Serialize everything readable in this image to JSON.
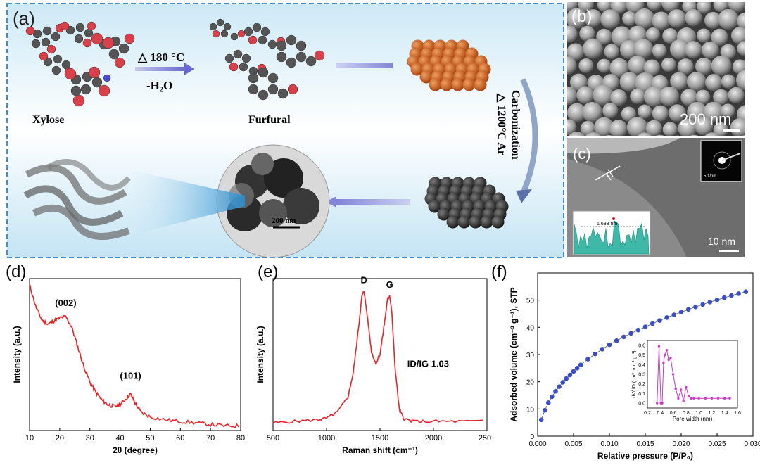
{
  "figure": {
    "panel_a": {
      "label": "(a)",
      "reaction_condition": "△ 180 °C",
      "dehydration": "-H₂O",
      "reactant_label": "Xylose",
      "product_label": "Furfural",
      "carbonization_label": "Carbonization",
      "carbonization_condition": "△ 1200°C Ar",
      "tem_scale": "200 nm"
    },
    "panel_b": {
      "label": "(b)",
      "scale": "200 nm"
    },
    "panel_c": {
      "label": "(c)",
      "scale": "10 nm",
      "inset_scale": "5 1/nm",
      "lattice_spacing": "1.633 nm"
    },
    "panel_d": {
      "label": "(d)"
    },
    "panel_e": {
      "label": "(e)"
    },
    "panel_f": {
      "label": "(f)"
    }
  },
  "colors": {
    "plot_red": "#e8232a",
    "blue_points": "#3b4fc4",
    "magenta": "#c83cc8",
    "sphere_orange": "#c8581e",
    "sphere_dark": "#2c2c2c",
    "frame_dash": "#3a8fd8"
  },
  "chart_data": [
    {
      "id": "d",
      "type": "line",
      "title": "",
      "xlabel": "2θ (degree)",
      "ylabel": "Intensity (a.u.)",
      "xlim": [
        10,
        80
      ],
      "ylim": [
        0,
        1
      ],
      "xticks": [
        10,
        20,
        30,
        40,
        50,
        60,
        70,
        80
      ],
      "annotations": [
        {
          "text": "(002)",
          "x": 22,
          "y": 0.82
        },
        {
          "text": "(101)",
          "x": 43.5,
          "y": 0.34
        }
      ],
      "series": [
        {
          "name": "XRD",
          "x": [
            10,
            12,
            14,
            16,
            18,
            20,
            22,
            24,
            26,
            28,
            30,
            32,
            34,
            36,
            38,
            40,
            42,
            43.5,
            45,
            47,
            50,
            55,
            60,
            65,
            70,
            75,
            80
          ],
          "y": [
            0.96,
            0.82,
            0.73,
            0.7,
            0.72,
            0.74,
            0.75,
            0.68,
            0.55,
            0.42,
            0.32,
            0.25,
            0.2,
            0.17,
            0.16,
            0.17,
            0.21,
            0.24,
            0.18,
            0.12,
            0.09,
            0.07,
            0.06,
            0.05,
            0.04,
            0.03,
            0.03
          ]
        }
      ]
    },
    {
      "id": "e",
      "type": "line",
      "title": "",
      "xlabel": "Raman shift (cm⁻¹)",
      "ylabel": "Intensity (a.u.)",
      "xlim": [
        500,
        2500
      ],
      "ylim": [
        0,
        1
      ],
      "xticks": [
        500,
        1000,
        1500,
        2000,
        2500
      ],
      "annotations": [
        {
          "text": "D",
          "x": 1350,
          "y": 0.97
        },
        {
          "text": "G",
          "x": 1590,
          "y": 0.94
        },
        {
          "text": "ID/IG 1.03",
          "x": 1950,
          "y": 0.42
        }
      ],
      "series": [
        {
          "name": "Raman",
          "x": [
            500,
            700,
            900,
            1000,
            1100,
            1200,
            1250,
            1300,
            1330,
            1350,
            1380,
            1420,
            1460,
            1500,
            1540,
            1570,
            1590,
            1610,
            1640,
            1680,
            1720,
            1800,
            2000,
            2200,
            2500
          ],
          "y": [
            0.05,
            0.06,
            0.07,
            0.08,
            0.12,
            0.22,
            0.38,
            0.68,
            0.88,
            0.92,
            0.76,
            0.52,
            0.44,
            0.5,
            0.7,
            0.86,
            0.89,
            0.78,
            0.42,
            0.14,
            0.08,
            0.06,
            0.06,
            0.06,
            0.06
          ]
        }
      ]
    },
    {
      "id": "f",
      "type": "scatter",
      "title": "",
      "xlabel": "Relative pressure (P/P₀)",
      "ylabel": "Adsorbed volume (cm⁻³ g⁻¹), STP",
      "xlim": [
        0,
        0.03
      ],
      "ylim": [
        0,
        60
      ],
      "xticks": [
        0.0,
        0.005,
        0.01,
        0.015,
        0.02,
        0.025,
        0.03
      ],
      "yticks": [
        0,
        10,
        20,
        30,
        40,
        50
      ],
      "series": [
        {
          "name": "Isotherm",
          "x": [
            0.0005,
            0.001,
            0.0015,
            0.002,
            0.0025,
            0.003,
            0.0035,
            0.004,
            0.0045,
            0.005,
            0.0055,
            0.006,
            0.007,
            0.008,
            0.009,
            0.01,
            0.011,
            0.012,
            0.013,
            0.014,
            0.015,
            0.016,
            0.017,
            0.018,
            0.019,
            0.02,
            0.021,
            0.022,
            0.023,
            0.024,
            0.025,
            0.026,
            0.027,
            0.028,
            0.029
          ],
          "y": [
            6,
            9.5,
            12.3,
            14.5,
            16.5,
            18.2,
            19.8,
            21.2,
            22.5,
            23.8,
            25.0,
            26.2,
            28.3,
            30.2,
            32.0,
            33.6,
            35.1,
            36.5,
            37.8,
            39.0,
            40.2,
            41.4,
            42.5,
            43.6,
            44.6,
            45.6,
            46.6,
            47.5,
            48.4,
            49.3,
            50.1,
            50.9,
            51.7,
            52.4,
            53.1
          ]
        }
      ],
      "inset": {
        "type": "line",
        "xlabel": "Pore width (nm)",
        "ylabel": "dV/dD (cm³ nm⁻¹ g⁻¹)",
        "xlim": [
          0.2,
          1.6
        ],
        "ylim": [
          -0.05,
          0.65
        ],
        "xticks": [
          0.2,
          0.4,
          0.6,
          0.8,
          1.0,
          1.2,
          1.4,
          1.6
        ],
        "yticks": [
          0.0,
          0.1,
          0.2,
          0.3,
          0.4,
          0.5,
          0.6
        ],
        "x": [
          0.35,
          0.38,
          0.41,
          0.43,
          0.45,
          0.47,
          0.5,
          0.53,
          0.56,
          0.6,
          0.64,
          0.68,
          0.72,
          0.76,
          0.8,
          0.84,
          0.88,
          0.92,
          1.0,
          1.1,
          1.2,
          1.3,
          1.4,
          1.48
        ],
        "y": [
          0.0,
          0.59,
          0.0,
          0.0,
          0.42,
          0.5,
          0.55,
          0.45,
          0.47,
          0.3,
          0.15,
          0.05,
          0.14,
          0.02,
          0.17,
          0.07,
          0.05,
          0.05,
          0.05,
          0.05,
          0.05,
          0.05,
          0.05,
          0.05
        ]
      }
    }
  ]
}
